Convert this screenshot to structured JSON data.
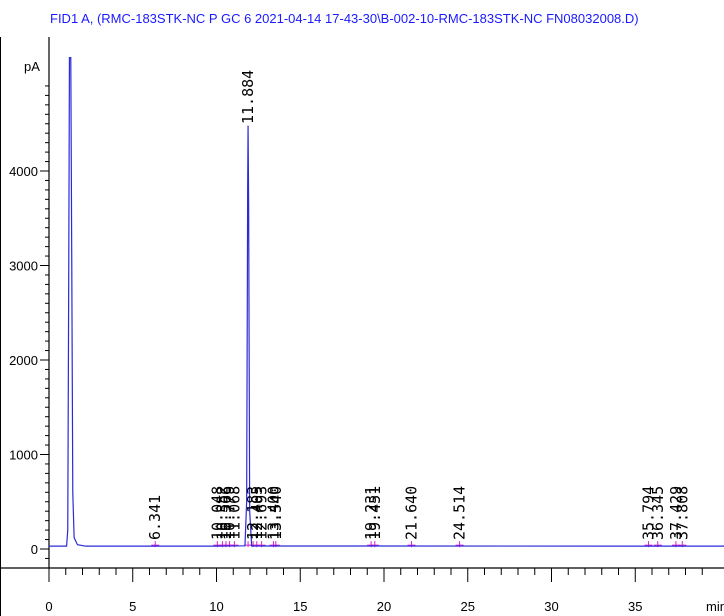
{
  "chart_data": {
    "type": "line",
    "title": "FID1 A,  (RMC-183STK-NC P GC 6 2021-04-14 17-43-30\\B-002-10-RMC-183STK-NC FN08032008.D)",
    "ylabel": "pA",
    "xlabel": "min",
    "xlim": [
      0,
      40.8
    ],
    "ylim": [
      -120,
      5200
    ],
    "x_ticks": [
      0,
      5,
      10,
      15,
      20,
      25,
      30,
      35
    ],
    "x_tick_labels": [
      "0",
      "5",
      "10",
      "15",
      "20",
      "25",
      "30",
      "35"
    ],
    "y_ticks": [
      0,
      1000,
      2000,
      3000,
      4000
    ],
    "y_tick_labels": [
      "0",
      "1000",
      "2000",
      "3000",
      "4000"
    ],
    "grid": false,
    "colors": {
      "trace": "#2a2ad8",
      "baseline_marks": "#d020d0",
      "title": "#1a1aff",
      "frame": "#000000"
    },
    "series": [
      {
        "name": "",
        "points": [
          [
            0,
            30
          ],
          [
            1.05,
            30
          ],
          [
            1.12,
            200
          ],
          [
            1.18,
            3000
          ],
          [
            1.22,
            5200
          ],
          [
            1.3,
            5200
          ],
          [
            1.36,
            3000
          ],
          [
            1.42,
            600
          ],
          [
            1.5,
            120
          ],
          [
            1.7,
            45
          ],
          [
            2.2,
            30
          ],
          [
            6.341,
            30
          ],
          [
            10.048,
            30
          ],
          [
            11.7,
            34
          ],
          [
            11.8,
            500
          ],
          [
            11.86,
            3800
          ],
          [
            11.884,
            4480
          ],
          [
            11.92,
            3600
          ],
          [
            11.98,
            400
          ],
          [
            12.1,
            32
          ],
          [
            40.8,
            30
          ]
        ]
      }
    ],
    "peaks": [
      {
        "rt": 6.341,
        "label": "6.341"
      },
      {
        "rt": 10.048,
        "label": "10.048"
      },
      {
        "rt": 10.352,
        "label": "10.352"
      },
      {
        "rt": 10.566,
        "label": "10.566"
      },
      {
        "rt": 10.779,
        "label": "10.779"
      },
      {
        "rt": 11.068,
        "label": "11.068"
      },
      {
        "rt": 11.884,
        "label": "11.884"
      },
      {
        "rt": 12.183,
        "label": "12.183"
      },
      {
        "rt": 12.405,
        "label": "12.405"
      },
      {
        "rt": 12.693,
        "label": "12.693"
      },
      {
        "rt": 13.4,
        "label": "13.400"
      },
      {
        "rt": 13.54,
        "label": "13.540"
      },
      {
        "rt": 19.231,
        "label": "19.231"
      },
      {
        "rt": 19.451,
        "label": "19.451"
      },
      {
        "rt": 21.64,
        "label": "21.640"
      },
      {
        "rt": 24.514,
        "label": "24.514"
      },
      {
        "rt": 35.794,
        "label": "35.794"
      },
      {
        "rt": 36.345,
        "label": "36.345"
      },
      {
        "rt": 37.429,
        "label": "37.429"
      },
      {
        "rt": 37.808,
        "label": "37.808"
      }
    ]
  }
}
